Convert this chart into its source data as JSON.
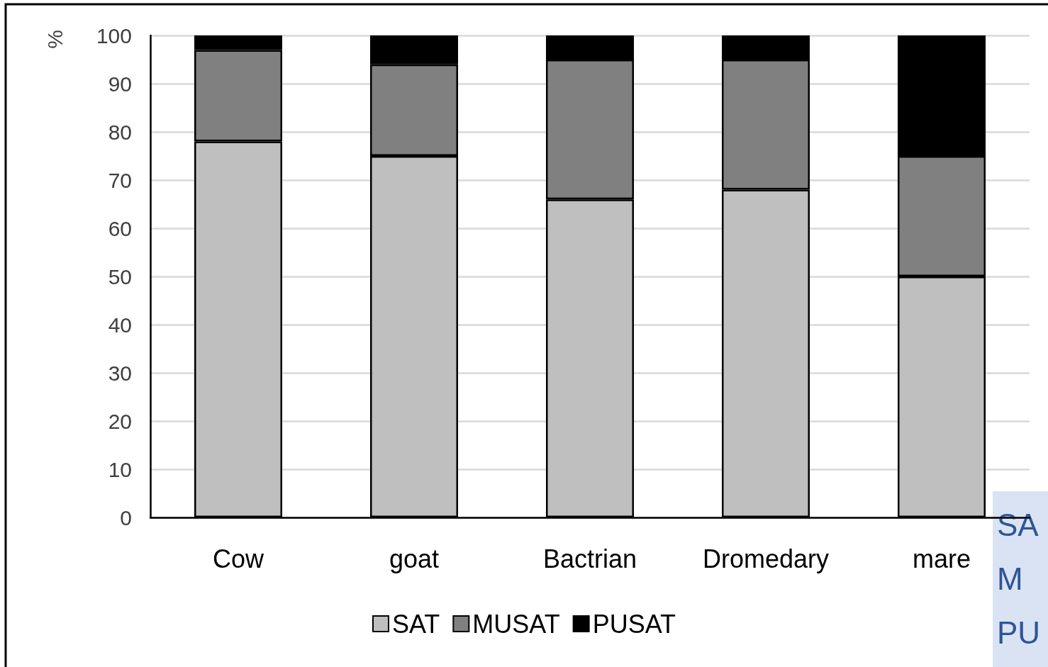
{
  "chart_data": {
    "type": "bar",
    "stacked": true,
    "ylabel": "%",
    "categories": [
      "Cow",
      "goat",
      "Bactrian",
      "Dromedary",
      "mare"
    ],
    "series": [
      {
        "name": "SAT",
        "color": "#bfbfbf",
        "values": [
          78,
          75,
          66,
          68,
          50
        ]
      },
      {
        "name": "MUSAT",
        "color": "#808080",
        "values": [
          19,
          19,
          29,
          27,
          25
        ]
      },
      {
        "name": "PUSAT",
        "color": "#000000",
        "values": [
          3,
          6,
          5,
          5,
          25
        ]
      }
    ],
    "ylim": [
      0,
      100
    ],
    "yticks": [
      0,
      10,
      20,
      30,
      40,
      50,
      60,
      70,
      80,
      90,
      100
    ],
    "grid": "y",
    "legend": "bottom",
    "annotations": [
      "SA",
      "M",
      "PU"
    ]
  }
}
